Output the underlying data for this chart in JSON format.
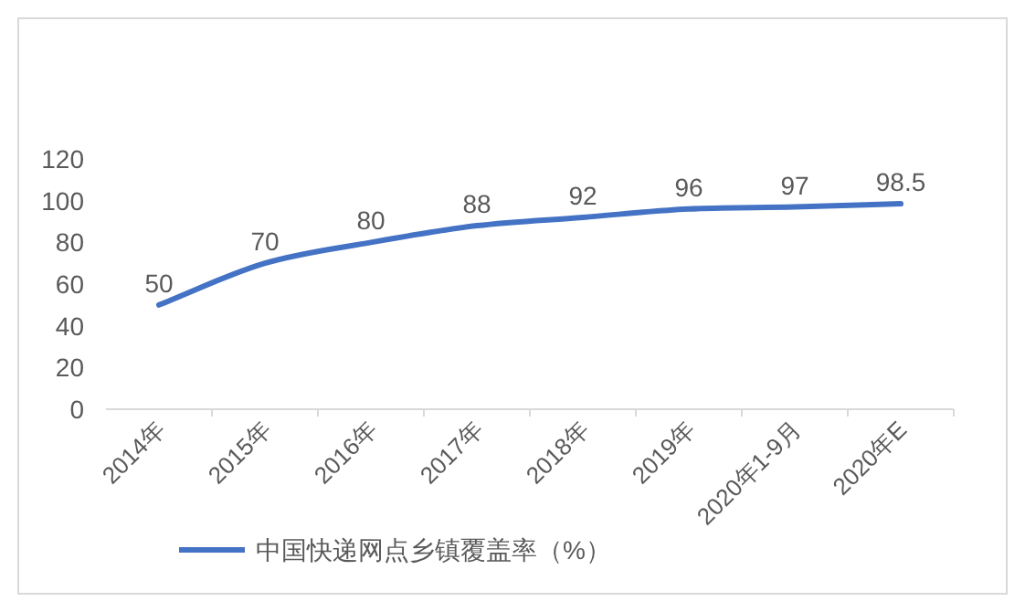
{
  "chart_data": {
    "type": "line",
    "categories": [
      "2014年",
      "2015年",
      "2016年",
      "2017年",
      "2018年",
      "2019年",
      "2020年1-9月",
      "2020年E"
    ],
    "series": [
      {
        "name": "中国快递网点乡镇覆盖率（%）",
        "color": "#4472c4",
        "values": [
          50,
          70,
          80,
          88,
          92,
          96,
          97,
          98.5
        ]
      }
    ],
    "ylim": [
      0,
      120
    ],
    "yticks": [
      0,
      20,
      40,
      60,
      80,
      100,
      120
    ],
    "grid": false,
    "legend": "bottom",
    "marker": "none",
    "data_labels": true
  }
}
